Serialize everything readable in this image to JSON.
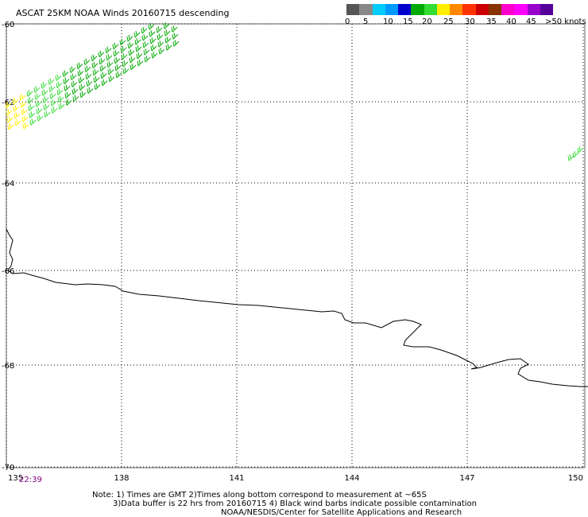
{
  "title": "ASCAT 25KM NOAA Winds 20160715 descending",
  "legend": {
    "colors": [
      "#555555",
      "#888888",
      "#00ccff",
      "#0099ff",
      "#0000cc",
      "#00aa00",
      "#33dd33",
      "#ffee00",
      "#ff8800",
      "#ff3300",
      "#cc0000",
      "#883300",
      "#ff00cc",
      "#ff00ff",
      "#9900cc",
      "#550099"
    ],
    "tick_labels": [
      "0",
      "5",
      "10",
      "15",
      "20",
      "25",
      "30",
      "35",
      "40",
      "45",
      ">50 knots"
    ]
  },
  "map": {
    "lon_labels": [
      "135",
      "138",
      "141",
      "144",
      "147",
      "150"
    ],
    "lat_labels": [
      "-60",
      "-62",
      "-64",
      "-66",
      "-68",
      "-70"
    ],
    "grid": "dotted"
  },
  "time_label": "22:39",
  "notes": [
    "Note: 1) Times are GMT 2)Times along bottom correspond to measurement at ~65S",
    "3)Data buffer is 22 hrs from 20160715 4) Black wind barbs indicate possible contamination",
    "NOAA/NESDIS/Center for Satellite Applications and Research"
  ]
}
